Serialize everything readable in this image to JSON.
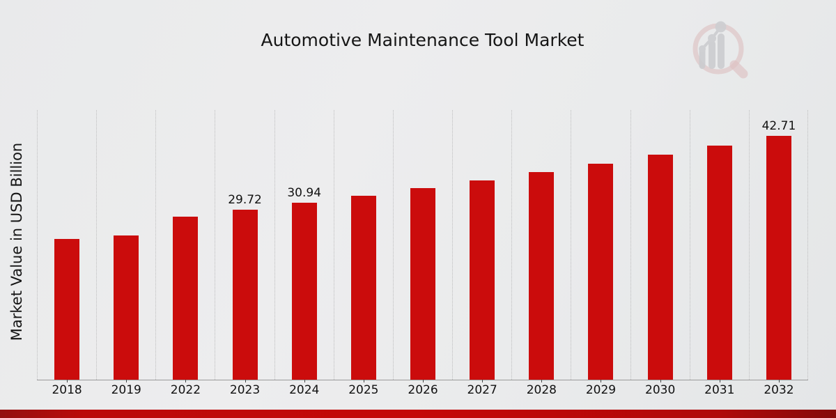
{
  "chart_data": {
    "type": "bar",
    "title": "Automotive Maintenance Tool Market",
    "xlabel": "",
    "ylabel": "Market Value in USD Billion",
    "categories": [
      "2018",
      "2019",
      "2022",
      "2023",
      "2024",
      "2025",
      "2026",
      "2027",
      "2028",
      "2029",
      "2030",
      "2031",
      "2032"
    ],
    "values": [
      24.6,
      25.3,
      28.6,
      29.72,
      30.94,
      32.21,
      33.53,
      34.91,
      36.34,
      37.84,
      39.39,
      41.02,
      42.71
    ],
    "value_labels": [
      "",
      "",
      "",
      "29.72",
      "30.94",
      "",
      "",
      "",
      "",
      "",
      "",
      "",
      "42.71"
    ],
    "bar_color": "#cb0c0c",
    "ylim": [
      0,
      47.2
    ],
    "grid": "vertical-dotted-between-categories",
    "legend": "none"
  },
  "colors": {
    "background": "#eaebec",
    "accent_red": "#c50808",
    "gridline": "#bdbdbe",
    "axis_line": "#9a9a9a",
    "text": "#151515",
    "logo_ring_pink": "#dcb9ba",
    "logo_bars_gray": "#c6c7ca"
  },
  "footer": {
    "accent_bar": "red-gradient-strip"
  },
  "logo": {
    "description": "magnifier-with-bar-chart-watermark"
  }
}
